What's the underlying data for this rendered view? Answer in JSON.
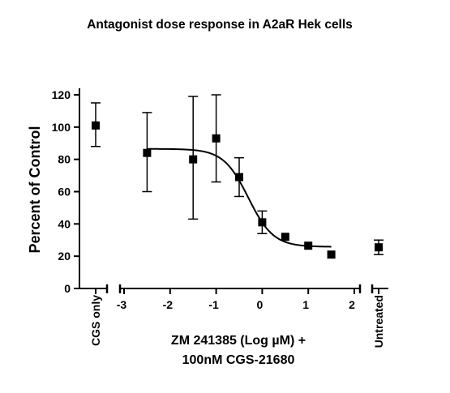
{
  "chart_data": {
    "type": "scatter",
    "title": "Antagonist dose response in A2aR Hek cells",
    "ylabel": "Percent of Control",
    "xlabel_line1": "ZM 241385 (Log µM) +",
    "xlabel_line2": "100nM CGS-21680",
    "ylim": [
      0,
      120
    ],
    "yticks": [
      0,
      20,
      40,
      60,
      80,
      100,
      120
    ],
    "xlim": [
      -3,
      2
    ],
    "xticks": [
      -3,
      -2,
      -1,
      0,
      1,
      2
    ],
    "grid": false,
    "legend": "none",
    "control_left": {
      "label": "CGS only",
      "y": 101,
      "err": [
        88,
        115
      ]
    },
    "control_right": {
      "label": "Untreated",
      "y": 25.5,
      "err": [
        21,
        30
      ]
    },
    "series": [
      {
        "x": [
          -2.5,
          -1.5,
          -1.0,
          -0.5,
          0.0,
          0.5,
          1.0,
          1.5
        ],
        "y": [
          84,
          80,
          93,
          69,
          41,
          32,
          26.5,
          21
        ],
        "err_low": [
          60,
          43,
          66,
          57,
          34,
          null,
          null,
          null
        ],
        "err_high": [
          109,
          119,
          120,
          81,
          48,
          null,
          null,
          null
        ]
      }
    ],
    "fit": {
      "top": 86.5,
      "bottom": 25.8,
      "logEC50": -0.3,
      "hill": -1.6
    },
    "color": "#000000"
  }
}
